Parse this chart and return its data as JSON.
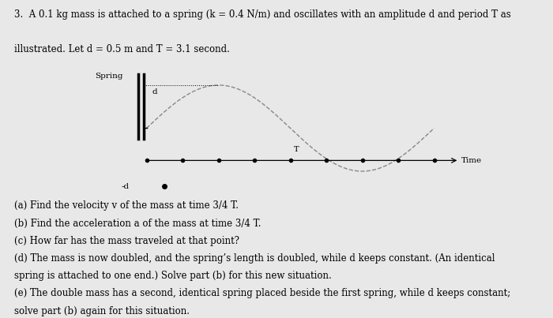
{
  "background_color": "#e8e8e8",
  "title_line1": "3.  A 0.1 kg mass is attached to a spring (k = 0.4 N/m) and oscillates with an amplitude d and period T as",
  "title_line2": "illustrated. Let d = 0.5 m and T = 3.1 second.",
  "question_a": "(a) Find the velocity v of the mass at time 3/4 T.",
  "question_b": "(b) Find the acceleration a of the mass at time 3/4 T.",
  "question_c": "(c) How far has the mass traveled at that point?",
  "question_d1": "(d) The mass is now doubled, and the spring’s length is doubled, while d keeps constant. (An identical",
  "question_d2": "spring is attached to one end.) Solve part (b) for this new situation.",
  "question_e1": "(e) The double mass has a second, identical spring placed beside the first spring, while d keeps constant;",
  "question_e2": "solve part (b) again for this situation.",
  "spring_label": "Spring",
  "d_label": "d",
  "neg_d_label": "-d",
  "time_label": "Time",
  "T_label": "T",
  "font_size_body": 8.5,
  "font_size_diagram": 7.5,
  "curve_color": "#888888",
  "line_color": "#000000"
}
